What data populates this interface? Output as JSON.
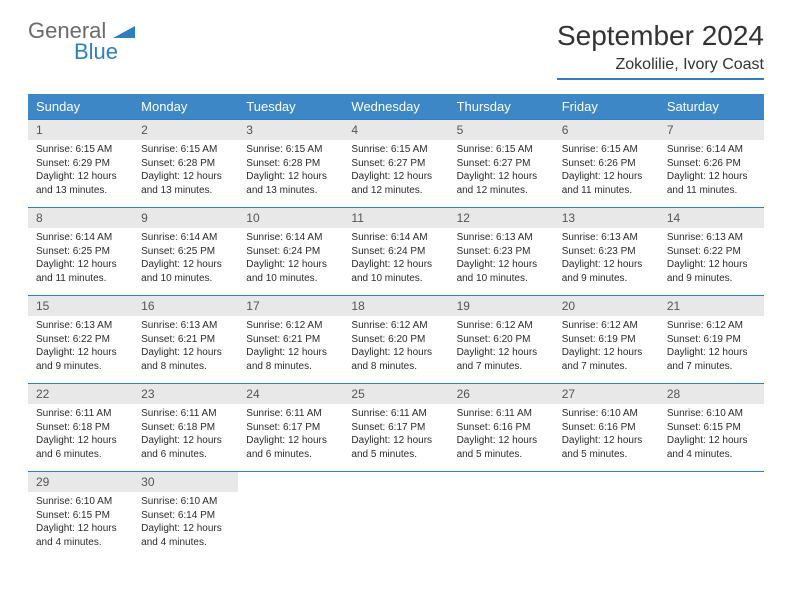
{
  "logo": {
    "general": "General",
    "blue": "Blue"
  },
  "title": "September 2024",
  "location": "Zokolilie, Ivory Coast",
  "colors": {
    "header_bg": "#3d87c7",
    "accent": "#2f7fbf",
    "daynum_bg": "#e8e8e8",
    "text": "#2b2b2b"
  },
  "weekdays": [
    "Sunday",
    "Monday",
    "Tuesday",
    "Wednesday",
    "Thursday",
    "Friday",
    "Saturday"
  ],
  "days": [
    {
      "n": 1,
      "sr": "6:15 AM",
      "ss": "6:29 PM",
      "dl": "12 hours and 13 minutes."
    },
    {
      "n": 2,
      "sr": "6:15 AM",
      "ss": "6:28 PM",
      "dl": "12 hours and 13 minutes."
    },
    {
      "n": 3,
      "sr": "6:15 AM",
      "ss": "6:28 PM",
      "dl": "12 hours and 13 minutes."
    },
    {
      "n": 4,
      "sr": "6:15 AM",
      "ss": "6:27 PM",
      "dl": "12 hours and 12 minutes."
    },
    {
      "n": 5,
      "sr": "6:15 AM",
      "ss": "6:27 PM",
      "dl": "12 hours and 12 minutes."
    },
    {
      "n": 6,
      "sr": "6:15 AM",
      "ss": "6:26 PM",
      "dl": "12 hours and 11 minutes."
    },
    {
      "n": 7,
      "sr": "6:14 AM",
      "ss": "6:26 PM",
      "dl": "12 hours and 11 minutes."
    },
    {
      "n": 8,
      "sr": "6:14 AM",
      "ss": "6:25 PM",
      "dl": "12 hours and 11 minutes."
    },
    {
      "n": 9,
      "sr": "6:14 AM",
      "ss": "6:25 PM",
      "dl": "12 hours and 10 minutes."
    },
    {
      "n": 10,
      "sr": "6:14 AM",
      "ss": "6:24 PM",
      "dl": "12 hours and 10 minutes."
    },
    {
      "n": 11,
      "sr": "6:14 AM",
      "ss": "6:24 PM",
      "dl": "12 hours and 10 minutes."
    },
    {
      "n": 12,
      "sr": "6:13 AM",
      "ss": "6:23 PM",
      "dl": "12 hours and 10 minutes."
    },
    {
      "n": 13,
      "sr": "6:13 AM",
      "ss": "6:23 PM",
      "dl": "12 hours and 9 minutes."
    },
    {
      "n": 14,
      "sr": "6:13 AM",
      "ss": "6:22 PM",
      "dl": "12 hours and 9 minutes."
    },
    {
      "n": 15,
      "sr": "6:13 AM",
      "ss": "6:22 PM",
      "dl": "12 hours and 9 minutes."
    },
    {
      "n": 16,
      "sr": "6:13 AM",
      "ss": "6:21 PM",
      "dl": "12 hours and 8 minutes."
    },
    {
      "n": 17,
      "sr": "6:12 AM",
      "ss": "6:21 PM",
      "dl": "12 hours and 8 minutes."
    },
    {
      "n": 18,
      "sr": "6:12 AM",
      "ss": "6:20 PM",
      "dl": "12 hours and 8 minutes."
    },
    {
      "n": 19,
      "sr": "6:12 AM",
      "ss": "6:20 PM",
      "dl": "12 hours and 7 minutes."
    },
    {
      "n": 20,
      "sr": "6:12 AM",
      "ss": "6:19 PM",
      "dl": "12 hours and 7 minutes."
    },
    {
      "n": 21,
      "sr": "6:12 AM",
      "ss": "6:19 PM",
      "dl": "12 hours and 7 minutes."
    },
    {
      "n": 22,
      "sr": "6:11 AM",
      "ss": "6:18 PM",
      "dl": "12 hours and 6 minutes."
    },
    {
      "n": 23,
      "sr": "6:11 AM",
      "ss": "6:18 PM",
      "dl": "12 hours and 6 minutes."
    },
    {
      "n": 24,
      "sr": "6:11 AM",
      "ss": "6:17 PM",
      "dl": "12 hours and 6 minutes."
    },
    {
      "n": 25,
      "sr": "6:11 AM",
      "ss": "6:17 PM",
      "dl": "12 hours and 5 minutes."
    },
    {
      "n": 26,
      "sr": "6:11 AM",
      "ss": "6:16 PM",
      "dl": "12 hours and 5 minutes."
    },
    {
      "n": 27,
      "sr": "6:10 AM",
      "ss": "6:16 PM",
      "dl": "12 hours and 5 minutes."
    },
    {
      "n": 28,
      "sr": "6:10 AM",
      "ss": "6:15 PM",
      "dl": "12 hours and 4 minutes."
    },
    {
      "n": 29,
      "sr": "6:10 AM",
      "ss": "6:15 PM",
      "dl": "12 hours and 4 minutes."
    },
    {
      "n": 30,
      "sr": "6:10 AM",
      "ss": "6:14 PM",
      "dl": "12 hours and 4 minutes."
    }
  ],
  "labels": {
    "sunrise": "Sunrise:",
    "sunset": "Sunset:",
    "daylight": "Daylight:"
  },
  "start_weekday": 0,
  "trailing_empty": 5
}
